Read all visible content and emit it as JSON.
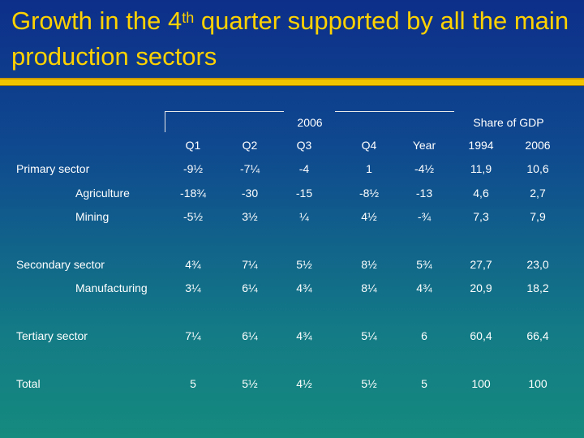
{
  "title": {
    "part1": "Growth in the 4",
    "sup": "th",
    "part2": " quarter supported by all the main production sectors"
  },
  "groups": {
    "year2006": "2006",
    "share": "Share of GDP"
  },
  "columns": [
    "Q1",
    "Q2",
    "Q3",
    "Q4",
    "Year",
    "1994",
    "2006"
  ],
  "rows": [
    {
      "label": "Primary sector",
      "indent": false,
      "values": [
        "-9½",
        "-7¼",
        "-4",
        "1",
        "-4½",
        "11,9",
        "10,6"
      ]
    },
    {
      "label": "Agriculture",
      "indent": true,
      "values": [
        "-18¾",
        "-30",
        "-15",
        "-8½",
        "-13",
        "4,6",
        "2,7"
      ]
    },
    {
      "label": "Mining",
      "indent": true,
      "values": [
        "-5½",
        "3½",
        "¼",
        "4½",
        "-¾",
        "7,3",
        "7,9"
      ]
    },
    {
      "label": "Secondary sector",
      "indent": false,
      "values": [
        "4¾",
        "7¼",
        "5½",
        "8½",
        "5¾",
        "27,7",
        "23,0"
      ]
    },
    {
      "label": "Manufacturing",
      "indent": true,
      "values": [
        "3¼",
        "6¼",
        "4¾",
        "8¼",
        "4¾",
        "20,9",
        "18,2"
      ]
    },
    {
      "label": "Tertiary sector",
      "indent": false,
      "values": [
        "7¼",
        "6¼",
        "4¾",
        "5¼",
        "6",
        "60,4",
        "66,4"
      ]
    },
    {
      "label": "Total",
      "indent": false,
      "values": [
        "5",
        "5½",
        "4½",
        "5½",
        "5",
        "100",
        "100"
      ]
    }
  ]
}
